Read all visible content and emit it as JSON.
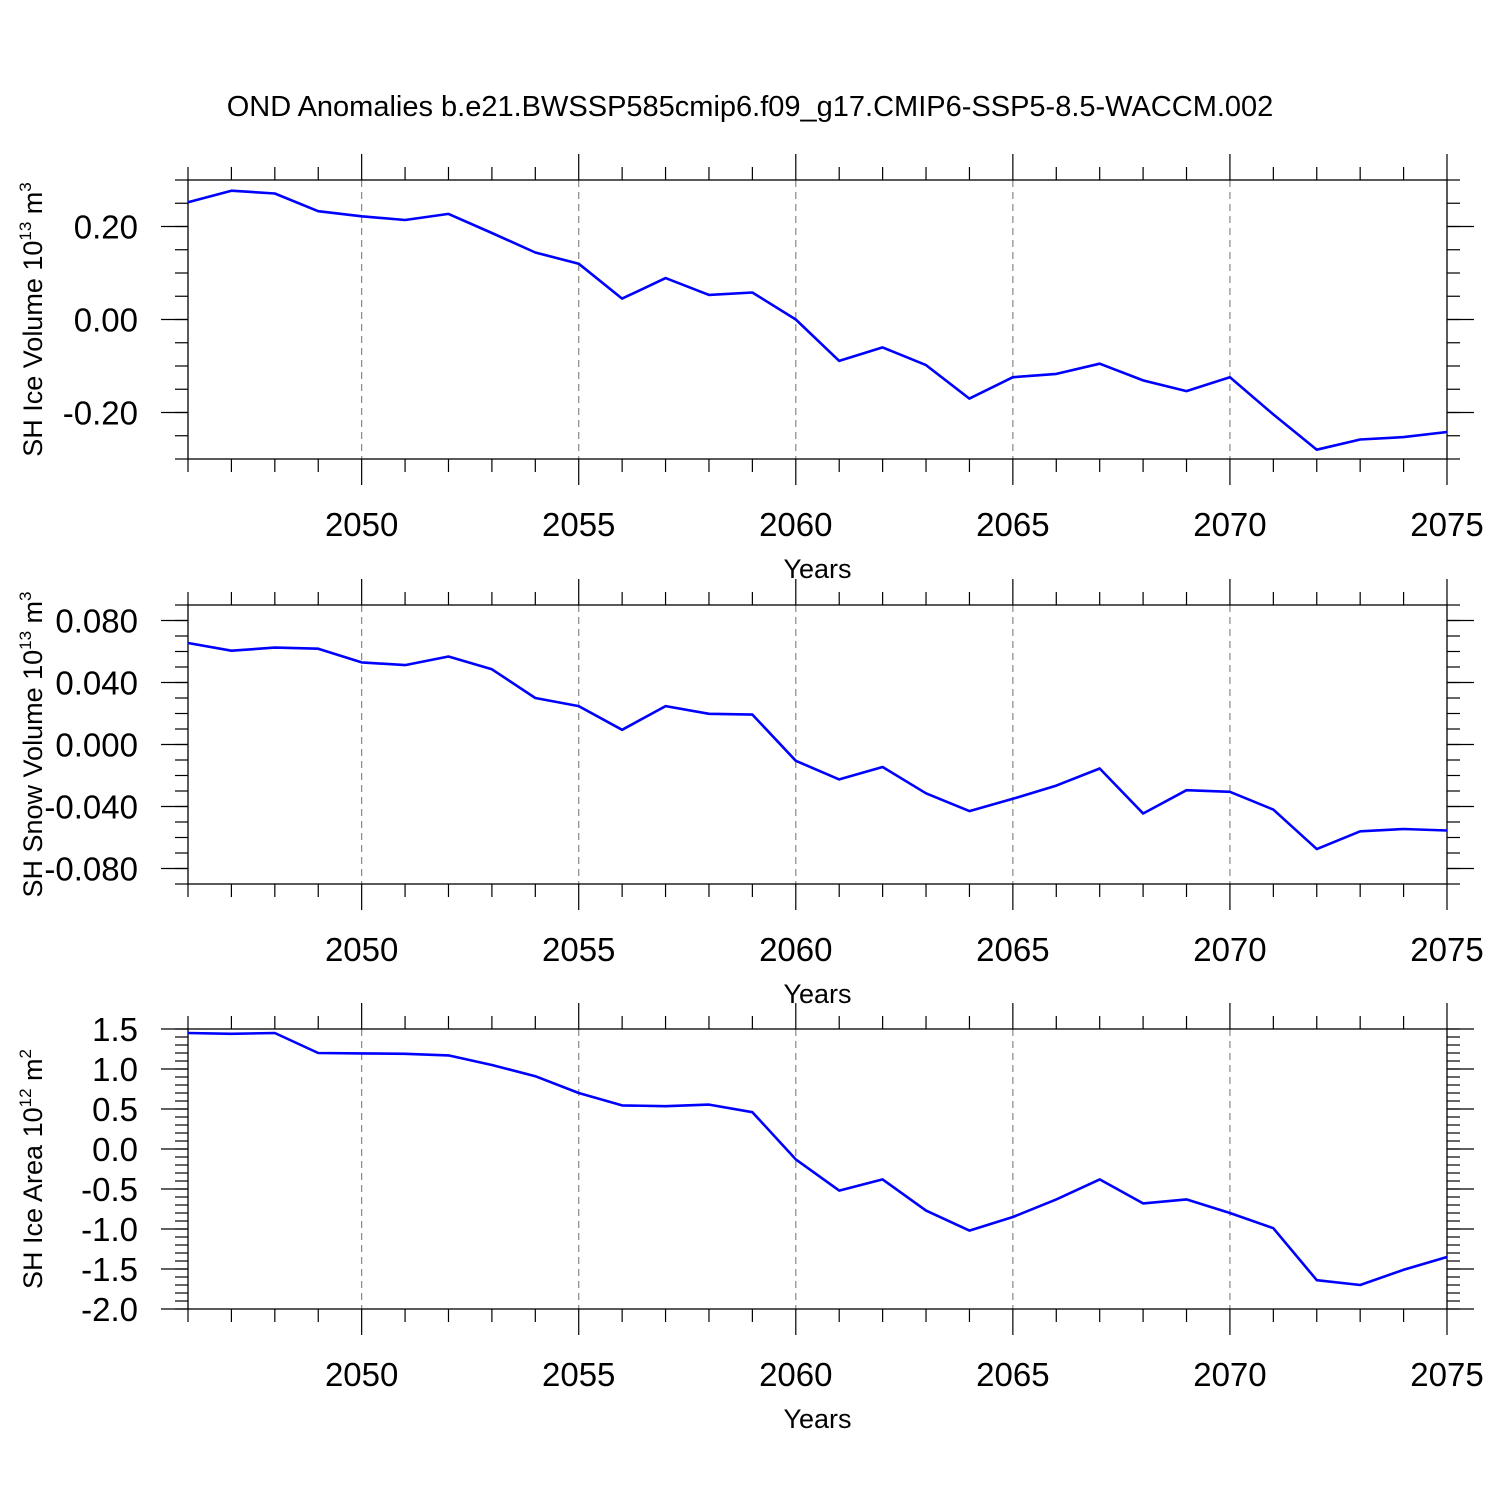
{
  "title": "OND Anomalies b.e21.BWSSP585cmip6.f09_g17.CMIP6-SSP5-8.5-WACCM.002",
  "colors": {
    "line": "#0000ff",
    "grid": "#888888",
    "axis": "#000000"
  },
  "chart_data": [
    {
      "type": "line",
      "ylabel": "SH Ice Volume 10",
      "ylabel_exp": "13",
      "ylabel_unit": " m",
      "ylabel_unit_exp": "3",
      "xlabel": "Years",
      "xlim": [
        2046,
        2075
      ],
      "ylim": [
        -0.3,
        0.3
      ],
      "x_ticks": [
        2050,
        2055,
        2060,
        2065,
        2070,
        2075
      ],
      "x_tick_labels": [
        "2050",
        "2055",
        "2060",
        "2065",
        "2070",
        "2075"
      ],
      "y_ticks": [
        0.2,
        0.0,
        -0.2
      ],
      "y_tick_labels": [
        "0.20",
        "0.00",
        "-0.20"
      ],
      "y_minor_step": 0.05,
      "grid": "vertical dashed",
      "x": [
        2046,
        2047,
        2048,
        2049,
        2050,
        2051,
        2052,
        2053,
        2054,
        2055,
        2056,
        2057,
        2058,
        2059,
        2060,
        2061,
        2062,
        2063,
        2064,
        2065,
        2066,
        2067,
        2068,
        2069,
        2070,
        2071,
        2072,
        2073,
        2074,
        2075
      ],
      "y": [
        0.252,
        0.277,
        0.271,
        0.233,
        0.222,
        0.214,
        0.227,
        0.186,
        0.144,
        0.12,
        0.045,
        0.089,
        0.053,
        0.058,
        0.0,
        -0.089,
        -0.06,
        -0.098,
        -0.17,
        -0.124,
        -0.117,
        -0.095,
        -0.131,
        -0.154,
        -0.124,
        -0.204,
        -0.28,
        -0.258,
        -0.253,
        -0.242
      ]
    },
    {
      "type": "line",
      "ylabel": "SH Snow Volume 10",
      "ylabel_exp": "13",
      "ylabel_unit": " m",
      "ylabel_unit_exp": "3",
      "xlabel": "Years",
      "xlim": [
        2046,
        2075
      ],
      "ylim": [
        -0.09,
        0.09
      ],
      "x_ticks": [
        2050,
        2055,
        2060,
        2065,
        2070,
        2075
      ],
      "x_tick_labels": [
        "2050",
        "2055",
        "2060",
        "2065",
        "2070",
        "2075"
      ],
      "y_ticks": [
        0.08,
        0.04,
        0.0,
        -0.04,
        -0.08
      ],
      "y_tick_labels": [
        "0.080",
        "0.040",
        "0.000",
        "-0.040",
        "-0.080"
      ],
      "y_minor_step": 0.01,
      "grid": "vertical dashed",
      "x": [
        2046,
        2047,
        2048,
        2049,
        2050,
        2051,
        2052,
        2053,
        2054,
        2055,
        2056,
        2057,
        2058,
        2059,
        2060,
        2061,
        2062,
        2063,
        2064,
        2065,
        2066,
        2067,
        2068,
        2069,
        2070,
        2071,
        2072,
        2073,
        2074,
        2075
      ],
      "y": [
        0.0655,
        0.0605,
        0.0625,
        0.0618,
        0.053,
        0.0512,
        0.0568,
        0.0485,
        0.03,
        0.0248,
        0.0095,
        0.0248,
        0.0198,
        0.0193,
        -0.0105,
        -0.0225,
        -0.0145,
        -0.0315,
        -0.043,
        -0.035,
        -0.0265,
        -0.0155,
        -0.0445,
        -0.0295,
        -0.0305,
        -0.042,
        -0.0675,
        -0.056,
        -0.0545,
        -0.0555
      ]
    },
    {
      "type": "line",
      "ylabel": "SH Ice Area 10",
      "ylabel_exp": "12",
      "ylabel_unit": " m",
      "ylabel_unit_exp": "2",
      "xlabel": "Years",
      "xlim": [
        2046,
        2075
      ],
      "ylim": [
        -2.0,
        1.5
      ],
      "x_ticks": [
        2050,
        2055,
        2060,
        2065,
        2070,
        2075
      ],
      "x_tick_labels": [
        "2050",
        "2055",
        "2060",
        "2065",
        "2070",
        "2075"
      ],
      "y_ticks": [
        1.5,
        1.0,
        0.5,
        0.0,
        -0.5,
        -1.0,
        -1.5,
        -2.0
      ],
      "y_tick_labels": [
        "1.5",
        "1.0",
        "0.5",
        "0.0",
        "-0.5",
        "-1.0",
        "-1.5",
        "-2.0"
      ],
      "y_minor_step": 0.1,
      "grid": "vertical dashed",
      "x": [
        2046,
        2047,
        2048,
        2049,
        2050,
        2051,
        2052,
        2053,
        2054,
        2055,
        2056,
        2057,
        2058,
        2059,
        2060,
        2061,
        2062,
        2063,
        2064,
        2065,
        2066,
        2067,
        2068,
        2069,
        2070,
        2071,
        2072,
        2073,
        2074,
        2075
      ],
      "y": [
        1.45,
        1.44,
        1.45,
        1.2,
        1.195,
        1.19,
        1.17,
        1.05,
        0.91,
        0.7,
        0.545,
        0.535,
        0.555,
        0.46,
        -0.13,
        -0.52,
        -0.38,
        -0.77,
        -1.02,
        -0.85,
        -0.63,
        -0.38,
        -0.68,
        -0.63,
        -0.8,
        -0.99,
        -1.64,
        -1.7,
        -1.51,
        -1.35
      ]
    }
  ]
}
